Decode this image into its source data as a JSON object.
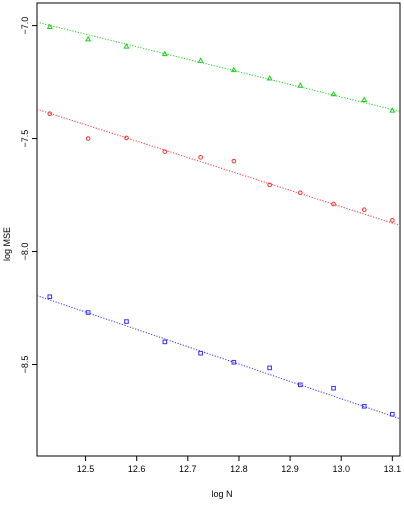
{
  "chart_data": {
    "type": "scatter",
    "title": "",
    "xlabel": "log N",
    "ylabel": "log MSE",
    "xlim": [
      12.405,
      13.115
    ],
    "ylim": [
      -8.905,
      -6.9
    ],
    "x_ticks": [
      12.5,
      12.6,
      12.7,
      12.8,
      12.9,
      13.0,
      13.1
    ],
    "x_tick_labels": [
      "12.5",
      "12.6",
      "12.7",
      "12.8",
      "12.9",
      "13.0",
      "13.1"
    ],
    "y_ticks": [
      -7.0,
      -7.5,
      -8.0,
      -8.5
    ],
    "y_tick_labels": [
      "−7.0",
      "−7.5",
      "−8.0",
      "−8.5"
    ],
    "grid": false,
    "legend": false,
    "x": [
      12.43,
      12.505,
      12.58,
      12.655,
      12.725,
      12.79,
      12.86,
      12.92,
      12.985,
      13.045,
      13.1
    ],
    "series": [
      {
        "color": "#22cc22",
        "marker": "triangle",
        "values": [
          -7.005,
          -7.06,
          -7.092,
          -7.125,
          -7.155,
          -7.196,
          -7.233,
          -7.265,
          -7.303,
          -7.328,
          -7.375
        ],
        "fit_line": {
          "x": [
            12.405,
            13.115
          ],
          "y": [
            -6.985,
            -7.38
          ]
        }
      },
      {
        "color": "#ee3333",
        "marker": "circle",
        "values": [
          -7.39,
          -7.5,
          -7.497,
          -7.558,
          -7.583,
          -7.6,
          -7.705,
          -7.74,
          -7.79,
          -7.815,
          -7.862
        ],
        "fit_line": {
          "x": [
            12.405,
            13.115
          ],
          "y": [
            -7.37,
            -7.885
          ]
        }
      },
      {
        "color": "#3333ee",
        "marker": "square",
        "values": [
          -8.2,
          -8.27,
          -8.31,
          -8.4,
          -8.45,
          -8.49,
          -8.515,
          -8.59,
          -8.605,
          -8.685,
          -8.72
        ],
        "fit_line": {
          "x": [
            12.405,
            13.115
          ],
          "y": [
            -8.195,
            -8.74
          ]
        }
      }
    ]
  }
}
